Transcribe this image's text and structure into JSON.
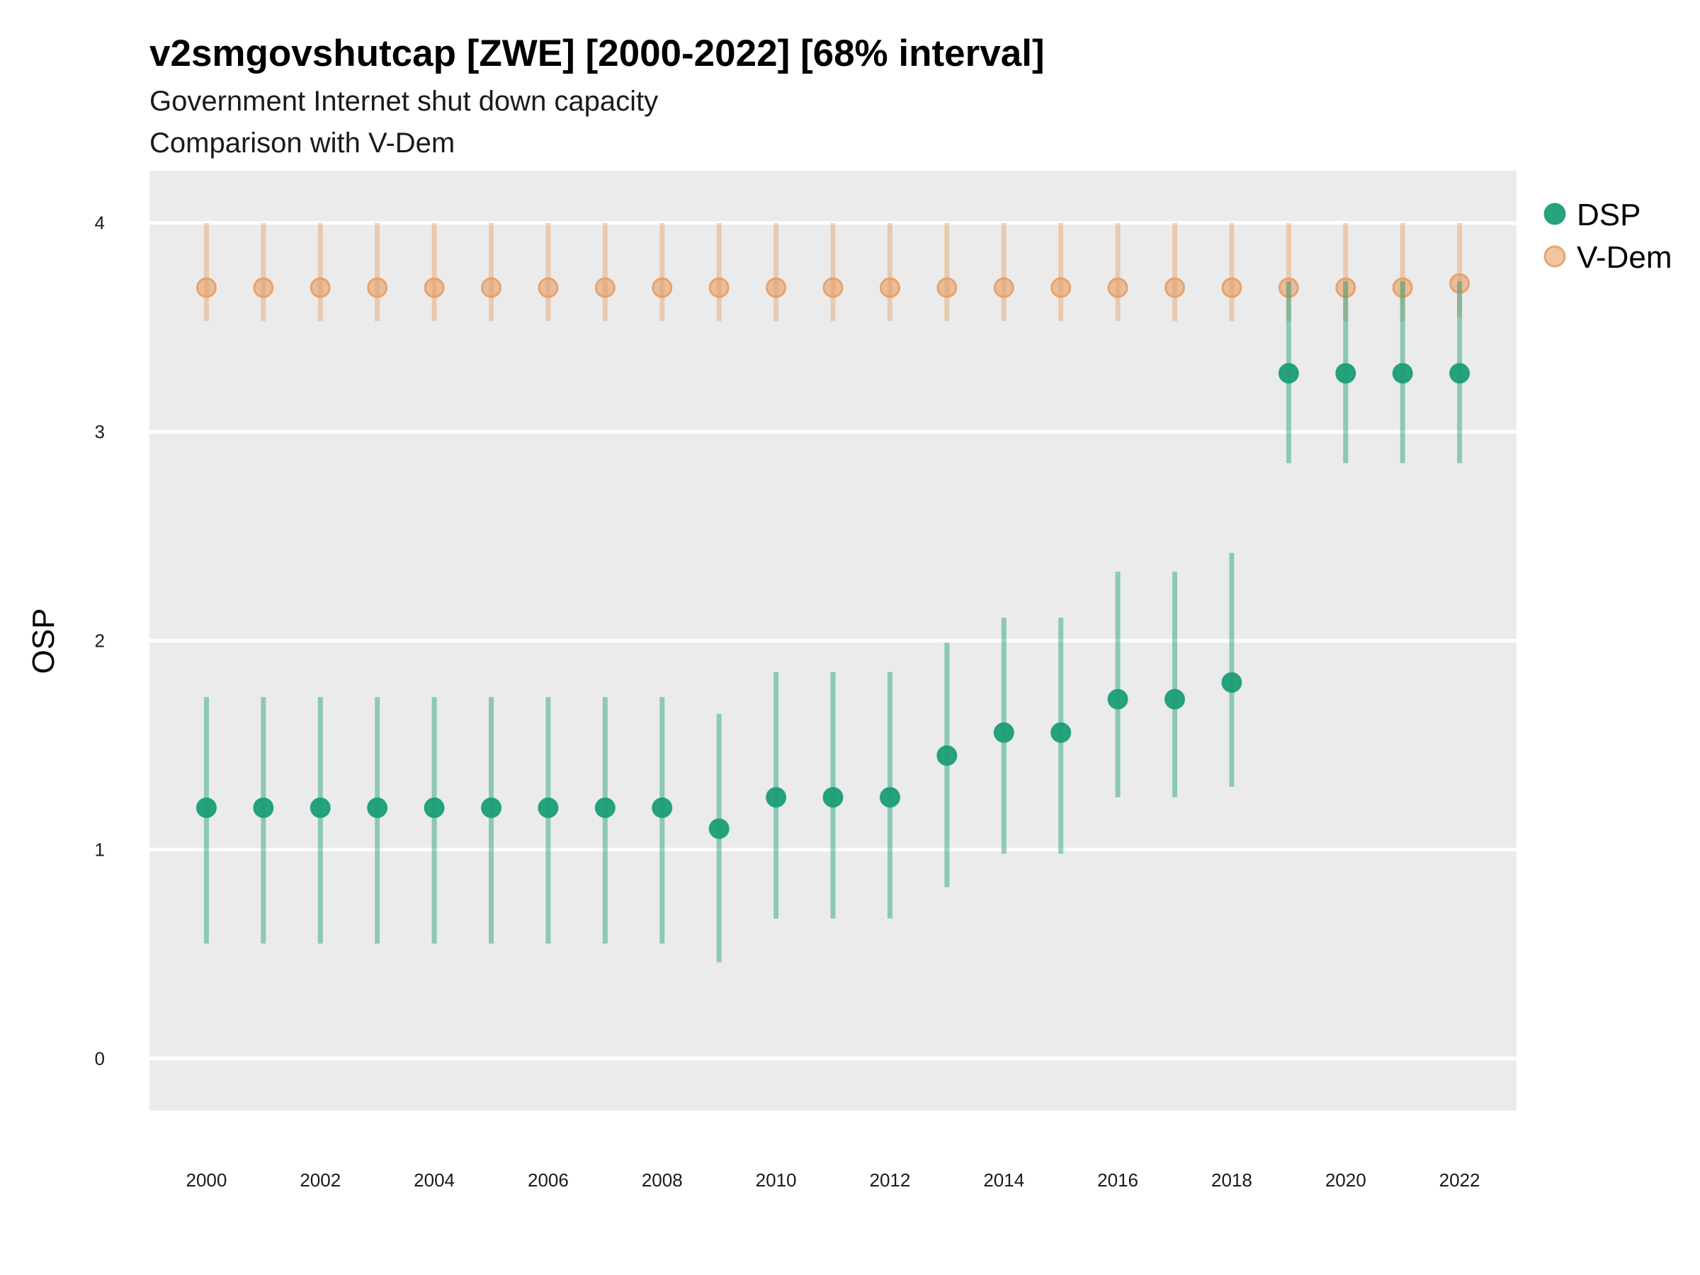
{
  "chart_data": {
    "type": "scatter",
    "title": "v2smgovshutcap [ZWE] [2000-2022] [68% interval]",
    "subtitle_lines": [
      "Government Internet shut down capacity",
      "Comparison with V-Dem"
    ],
    "xlabel": "",
    "ylabel": "OSP",
    "xlim": [
      1999,
      2023
    ],
    "ylim": [
      -0.25,
      4.25
    ],
    "x_ticks": [
      2000,
      2002,
      2004,
      2006,
      2008,
      2010,
      2012,
      2014,
      2016,
      2018,
      2020,
      2022
    ],
    "y_ticks": [
      0,
      1,
      2,
      3,
      4
    ],
    "grid": true,
    "legend_position": "right",
    "x": [
      2000,
      2001,
      2002,
      2003,
      2004,
      2005,
      2006,
      2007,
      2008,
      2009,
      2010,
      2011,
      2012,
      2013,
      2014,
      2015,
      2016,
      2017,
      2018,
      2019,
      2020,
      2021,
      2022
    ],
    "series": [
      {
        "name": "V-Dem",
        "color": "#e69f66",
        "values": [
          3.69,
          3.69,
          3.69,
          3.69,
          3.69,
          3.69,
          3.69,
          3.69,
          3.69,
          3.69,
          3.69,
          3.69,
          3.69,
          3.69,
          3.69,
          3.69,
          3.69,
          3.69,
          3.69,
          3.69,
          3.69,
          3.69,
          3.71
        ],
        "lower": [
          3.53,
          3.53,
          3.53,
          3.53,
          3.53,
          3.53,
          3.53,
          3.53,
          3.53,
          3.53,
          3.53,
          3.53,
          3.53,
          3.53,
          3.53,
          3.53,
          3.53,
          3.53,
          3.53,
          3.53,
          3.53,
          3.53,
          3.55
        ],
        "upper": [
          4.0,
          4.0,
          4.0,
          4.0,
          4.0,
          4.0,
          4.0,
          4.0,
          4.0,
          4.0,
          4.0,
          4.0,
          4.0,
          4.0,
          4.0,
          4.0,
          4.0,
          4.0,
          4.0,
          4.0,
          4.0,
          4.0,
          4.0
        ]
      },
      {
        "name": "DSP",
        "color": "#1b9e77",
        "values": [
          1.2,
          1.2,
          1.2,
          1.2,
          1.2,
          1.2,
          1.2,
          1.2,
          1.2,
          1.1,
          1.25,
          1.25,
          1.25,
          1.45,
          1.56,
          1.56,
          1.72,
          1.72,
          1.8,
          3.28,
          3.28,
          3.28,
          3.28
        ],
        "lower": [
          0.55,
          0.55,
          0.55,
          0.55,
          0.55,
          0.55,
          0.55,
          0.55,
          0.55,
          0.46,
          0.67,
          0.67,
          0.67,
          0.82,
          0.98,
          0.98,
          1.25,
          1.25,
          1.3,
          2.85,
          2.85,
          2.85,
          2.85
        ],
        "upper": [
          1.73,
          1.73,
          1.73,
          1.73,
          1.73,
          1.73,
          1.73,
          1.73,
          1.73,
          1.65,
          1.85,
          1.85,
          1.85,
          1.99,
          2.11,
          2.11,
          2.33,
          2.33,
          2.42,
          3.72,
          3.72,
          3.72,
          3.72
        ]
      }
    ],
    "legend_order": [
      "DSP",
      "V-Dem"
    ],
    "panel_background": "#ebebeb",
    "grid_color": "#ffffff"
  }
}
